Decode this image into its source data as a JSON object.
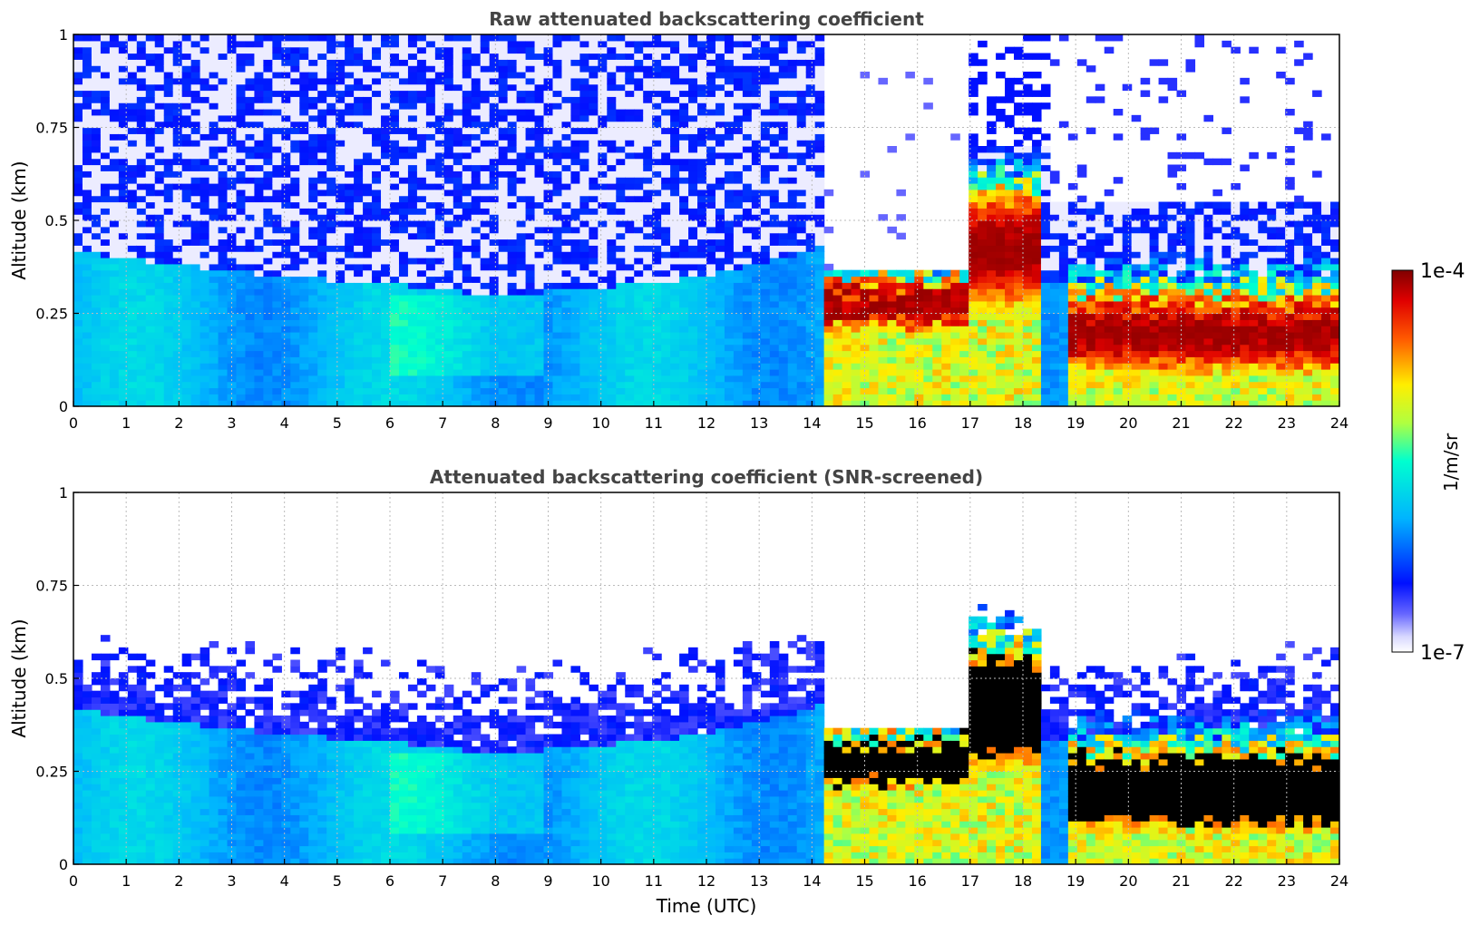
{
  "chart_data": [
    {
      "type": "heatmap",
      "title": "Raw attenuated backscattering coefficient",
      "xlabel": "",
      "ylabel": "Altitude (km)",
      "xlim": [
        0,
        24
      ],
      "ylim": [
        0,
        1
      ],
      "x_ticks": [
        "0",
        "1",
        "2",
        "3",
        "4",
        "5",
        "6",
        "7",
        "8",
        "9",
        "10",
        "11",
        "12",
        "13",
        "14",
        "15",
        "16",
        "17",
        "18",
        "19",
        "20",
        "21",
        "22",
        "23",
        "24"
      ],
      "y_ticks": [
        {
          "value": 0,
          "label": "0"
        },
        {
          "value": 0.25,
          "label": "0.25"
        },
        {
          "value": 0.5,
          "label": "0.5"
        },
        {
          "value": 0.75,
          "label": "0.75"
        },
        {
          "value": 1,
          "label": "1"
        }
      ],
      "grid": true,
      "screened": false
    },
    {
      "type": "heatmap",
      "title": "Attenuated backscattering coefficient (SNR-screened)",
      "xlabel": "Time (UTC)",
      "ylabel": "Altitude (km)",
      "xlim": [
        0,
        24
      ],
      "ylim": [
        0,
        1
      ],
      "x_ticks": [
        "0",
        "1",
        "2",
        "3",
        "4",
        "5",
        "6",
        "7",
        "8",
        "9",
        "10",
        "11",
        "12",
        "13",
        "14",
        "15",
        "16",
        "17",
        "18",
        "19",
        "20",
        "21",
        "22",
        "23",
        "24"
      ],
      "y_ticks": [
        {
          "value": 0,
          "label": "0"
        },
        {
          "value": 0.25,
          "label": "0.25"
        },
        {
          "value": 0.5,
          "label": "0.5"
        },
        {
          "value": 0.75,
          "label": "0.75"
        },
        {
          "value": 1,
          "label": "1"
        }
      ],
      "grid": true,
      "screened": true
    }
  ],
  "colorbar": {
    "label": "1/m/sr",
    "max_label": "1e-4",
    "min_label": "1e-7",
    "scale": "log",
    "colormap": "jet",
    "saturated_color": "#000000"
  },
  "profile": {
    "boundary_layer_top_km": [
      {
        "t": 0,
        "h": 0.42
      },
      {
        "t": 2,
        "h": 0.38
      },
      {
        "t": 4,
        "h": 0.35
      },
      {
        "t": 6,
        "h": 0.33
      },
      {
        "t": 8,
        "h": 0.3
      },
      {
        "t": 10,
        "h": 0.32
      },
      {
        "t": 12,
        "h": 0.35
      },
      {
        "t": 14,
        "h": 0.42
      },
      {
        "t": 14.3,
        "h": 0.45
      },
      {
        "t": 17,
        "h": 0.32
      },
      {
        "t": 24,
        "h": 0.35
      }
    ],
    "cloud_layers": [
      {
        "t0": 14.3,
        "t1": 17.0,
        "base_km": 0.2,
        "top_km": 0.35
      },
      {
        "t0": 17.0,
        "t1": 18.3,
        "base_km": 0.25,
        "top_km": 0.6
      },
      {
        "t0": 18.8,
        "t1": 24.0,
        "base_km": 0.08,
        "top_km": 0.32
      }
    ]
  }
}
